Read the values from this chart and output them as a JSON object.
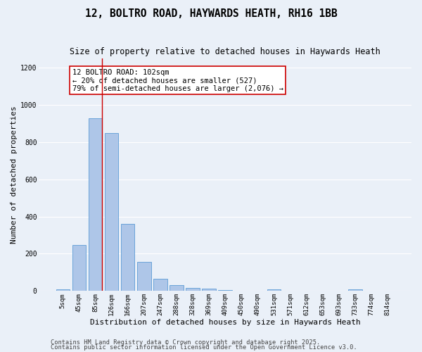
{
  "title_line1": "12, BOLTRO ROAD, HAYWARDS HEATH, RH16 1BB",
  "title_line2": "Size of property relative to detached houses in Haywards Heath",
  "xlabel": "Distribution of detached houses by size in Haywards Heath",
  "ylabel": "Number of detached properties",
  "categories": [
    "5sqm",
    "45sqm",
    "85sqm",
    "126sqm",
    "166sqm",
    "207sqm",
    "247sqm",
    "288sqm",
    "328sqm",
    "369sqm",
    "409sqm",
    "450sqm",
    "490sqm",
    "531sqm",
    "571sqm",
    "612sqm",
    "653sqm",
    "693sqm",
    "733sqm",
    "774sqm",
    "814sqm"
  ],
  "values": [
    8,
    248,
    930,
    848,
    360,
    158,
    65,
    30,
    15,
    12,
    5,
    0,
    0,
    8,
    0,
    0,
    0,
    0,
    8,
    0,
    0
  ],
  "bar_color": "#aec6e8",
  "bar_edge_color": "#5b9bd5",
  "vline_x": 2.42,
  "vline_color": "#cc0000",
  "annotation_text": "12 BOLTRO ROAD: 102sqm\n← 20% of detached houses are smaller (527)\n79% of semi-detached houses are larger (2,076) →",
  "annotation_box_color": "#ffffff",
  "annotation_box_edge": "#cc0000",
  "ylim": [
    0,
    1250
  ],
  "yticks": [
    0,
    200,
    400,
    600,
    800,
    1000,
    1200
  ],
  "background_color": "#eaf0f8",
  "grid_color": "#ffffff",
  "footer_line1": "Contains HM Land Registry data © Crown copyright and database right 2025.",
  "footer_line2": "Contains public sector information licensed under the Open Government Licence v3.0.",
  "title_fontsize": 10.5,
  "subtitle_fontsize": 8.5,
  "axis_label_fontsize": 8,
  "tick_fontsize": 6.5,
  "annotation_fontsize": 7.5,
  "footer_fontsize": 6.2
}
